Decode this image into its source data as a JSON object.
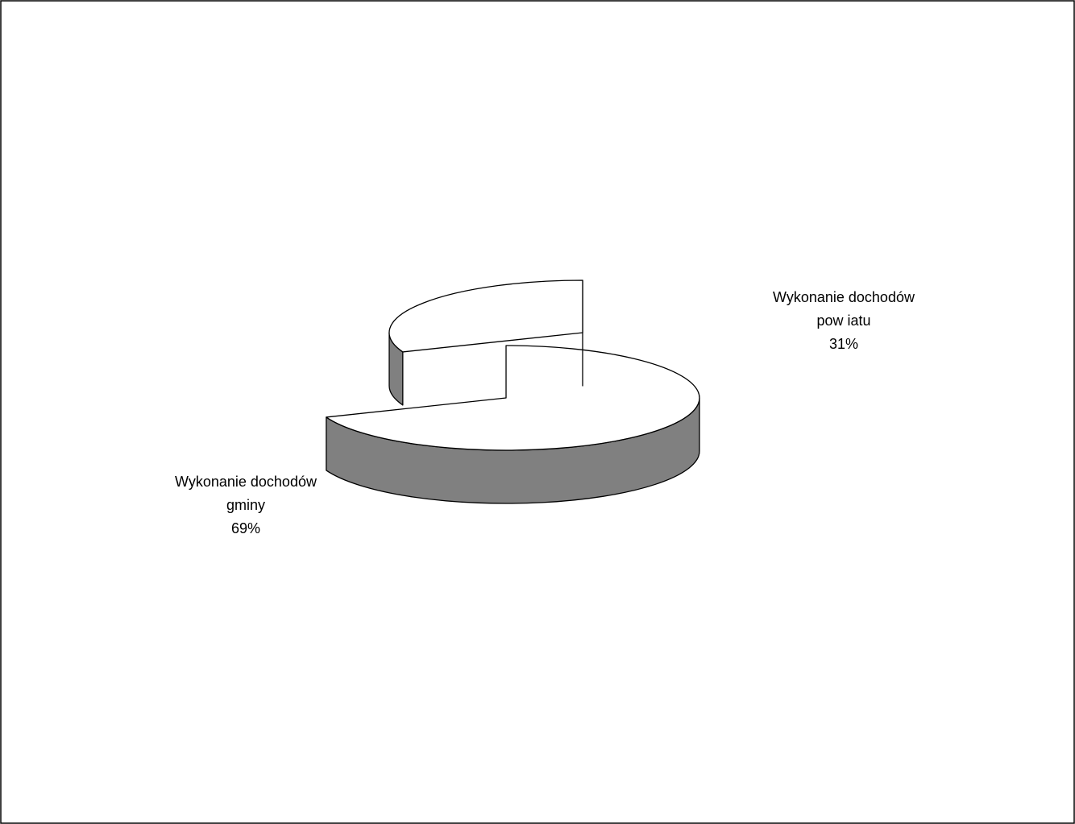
{
  "chart_data": {
    "type": "pie",
    "style": "3d-exploded",
    "title": "",
    "legend": "none",
    "slices": [
      {
        "label_lines": [
          "Wykonanie dochodów",
          "gminy",
          "69%"
        ],
        "value": 69,
        "exploded": false
      },
      {
        "label_lines": [
          "Wykonanie dochodów",
          "pow iatu",
          "31%"
        ],
        "value": 31,
        "exploded": true
      }
    ],
    "colors": {
      "top": "#ffffff",
      "side": "#808080",
      "outline": "#000000"
    }
  }
}
